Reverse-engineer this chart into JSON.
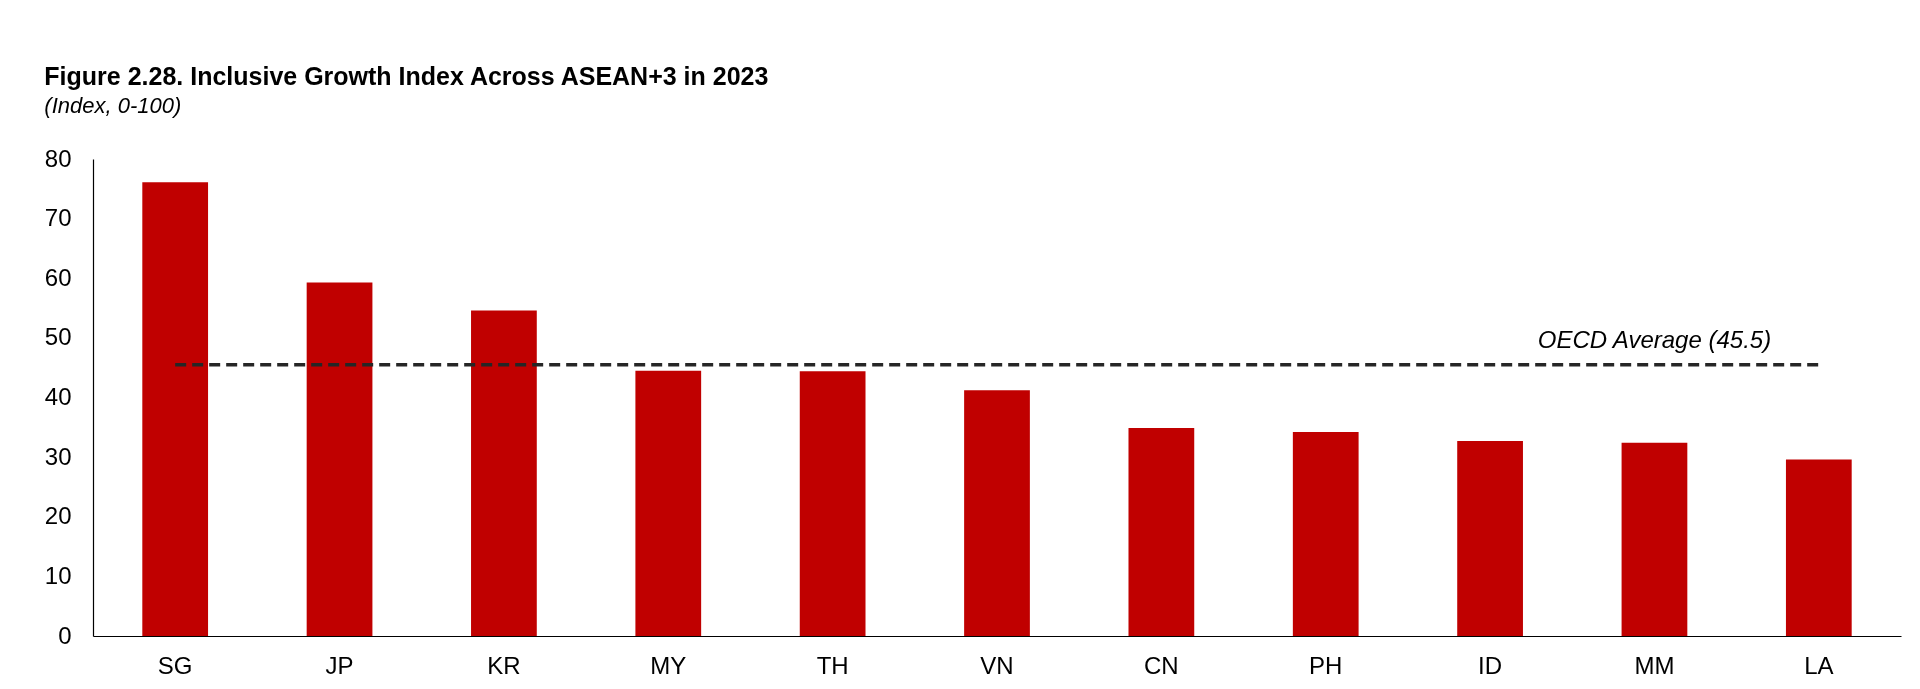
{
  "chart_data": {
    "type": "bar",
    "title": "Figure 2.28. Inclusive Growth Index Across ASEAN+3 in 2023",
    "subtitle": "(Index, 0-100)",
    "categories": [
      "SG",
      "JP",
      "KR",
      "MY",
      "TH",
      "VN",
      "CN",
      "PH",
      "ID",
      "MM",
      "LA"
    ],
    "values": [
      76.1,
      59.3,
      54.6,
      44.5,
      44.4,
      41.2,
      34.9,
      34.2,
      32.7,
      32.4,
      29.6
    ],
    "color": "#c00000",
    "ylim": [
      0,
      80
    ],
    "yticks": [
      0,
      10,
      20,
      30,
      40,
      50,
      60,
      70,
      80
    ],
    "ref_lines": [
      {
        "axis": "y",
        "value": 45.5,
        "label": "OECD Average (45.5)",
        "color": "#262626",
        "line_style": "dashed"
      }
    ]
  }
}
